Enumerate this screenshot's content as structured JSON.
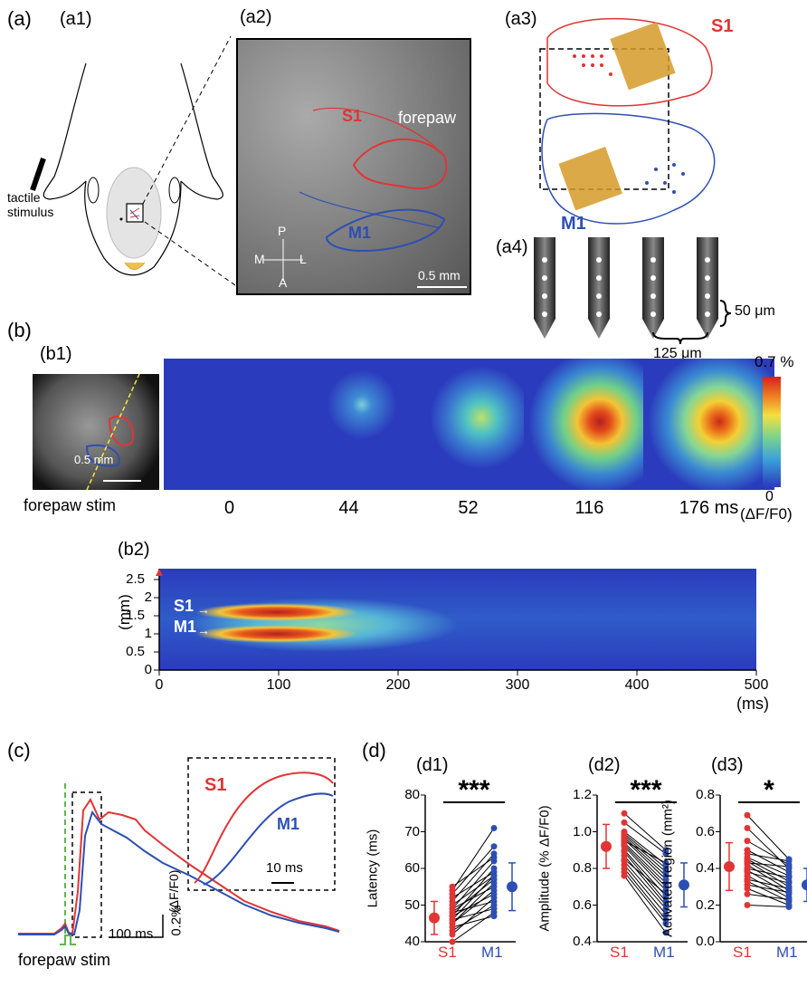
{
  "panels": {
    "a": "(a)",
    "a1": "(a1)",
    "a2": "(a2)",
    "a3": "(a3)",
    "a4": "(a4)",
    "b": "(b)",
    "b1": "(b1)",
    "b2": "(b2)",
    "c": "(c)",
    "d": "(d)",
    "d1": "(d1)",
    "d2": "(d2)",
    "d3": "(d3)"
  },
  "a1": {
    "stimulus_label_1": "tactile",
    "stimulus_label_2": "stimulus"
  },
  "a2": {
    "s1": "S1",
    "m1": "M1",
    "forepaw": "forepaw",
    "compass": {
      "p": "P",
      "a": "A",
      "m": "M",
      "l": "L"
    },
    "scale": "0.5 mm"
  },
  "a3": {
    "s1": "S1",
    "m1": "M1"
  },
  "a4": {
    "vertical_spacing": "50 μm",
    "horizontal_spacing": "125 μm"
  },
  "b1": {
    "scale": "0.5 mm",
    "stim_label": "forepaw stim",
    "times": [
      "0",
      "44",
      "52",
      "116",
      "176 ms"
    ],
    "colorbar_max": "0.7 %",
    "colorbar_min": "0",
    "colorbar_unit": "(ΔF/F0)"
  },
  "b2": {
    "ylabel": "(mm)",
    "xunit": "(ms)",
    "s1": "S1",
    "m1": "M1",
    "yticks": [
      "2.5",
      "2",
      "1.5",
      "1",
      "0.5",
      "0"
    ],
    "xticks": [
      "0",
      "100",
      "200",
      "300",
      "400",
      "500"
    ]
  },
  "c": {
    "inset_s1": "S1",
    "inset_m1": "M1",
    "inset_scale": "10 ms",
    "scale_time": "100 ms",
    "scale_amp": "0.2%",
    "scale_unit": "(ΔF/F0)",
    "stim_label": "forepaw stim"
  },
  "colors": {
    "s1": "#e23434",
    "m1": "#2d4fb3",
    "stim": "#5cb84a"
  },
  "chart_data": [
    {
      "type": "scatter",
      "title": "(d1)",
      "ylabel": "Latency (ms)",
      "categories": [
        "S1",
        "M1"
      ],
      "ylim": [
        40,
        80
      ],
      "yticks": [
        "40",
        "50",
        "60",
        "70",
        "80"
      ],
      "significance": "***",
      "mean": [
        46.5,
        55
      ],
      "sd": [
        4.5,
        6.5
      ],
      "pairs": [
        [
          40,
          48
        ],
        [
          42,
          52
        ],
        [
          43,
          50
        ],
        [
          44,
          47
        ],
        [
          45,
          54
        ],
        [
          45,
          56
        ],
        [
          46,
          49
        ],
        [
          46,
          58
        ],
        [
          47,
          53
        ],
        [
          47,
          60
        ],
        [
          48,
          51
        ],
        [
          48,
          57
        ],
        [
          49,
          55
        ],
        [
          49,
          62
        ],
        [
          50,
          58
        ],
        [
          51,
          64
        ],
        [
          52,
          59
        ],
        [
          53,
          66
        ],
        [
          54,
          71
        ],
        [
          55,
          63
        ]
      ]
    },
    {
      "type": "scatter",
      "title": "(d2)",
      "ylabel": "Amplitude (% ΔF/F0)",
      "categories": [
        "S1",
        "M1"
      ],
      "ylim": [
        0.4,
        1.2
      ],
      "yticks": [
        "0.4",
        "0.6",
        "0.8",
        "1.0",
        "1.2"
      ],
      "significance": "***",
      "mean": [
        0.92,
        0.71
      ],
      "sd": [
        0.12,
        0.12
      ],
      "pairs": [
        [
          1.1,
          0.9
        ],
        [
          1.05,
          0.88
        ],
        [
          1.0,
          0.82
        ],
        [
          0.99,
          0.8
        ],
        [
          0.98,
          0.78
        ],
        [
          0.97,
          0.76
        ],
        [
          0.96,
          0.74
        ],
        [
          0.95,
          0.83
        ],
        [
          0.94,
          0.72
        ],
        [
          0.93,
          0.7
        ],
        [
          0.92,
          0.68
        ],
        [
          0.9,
          0.65
        ],
        [
          0.89,
          0.62
        ],
        [
          0.87,
          0.6
        ],
        [
          0.85,
          0.66
        ],
        [
          0.84,
          0.58
        ],
        [
          0.82,
          0.55
        ],
        [
          0.8,
          0.52
        ],
        [
          0.78,
          0.5
        ],
        [
          0.76,
          0.45
        ]
      ]
    },
    {
      "type": "scatter",
      "title": "(d3)",
      "ylabel": "Activated region (mm²)",
      "categories": [
        "S1",
        "M1"
      ],
      "ylim": [
        0.0,
        0.8
      ],
      "yticks": [
        "0.0",
        "0.2",
        "0.4",
        "0.6",
        "0.8"
      ],
      "significance": "*",
      "mean": [
        0.41,
        0.31
      ],
      "sd": [
        0.13,
        0.09
      ],
      "pairs": [
        [
          0.69,
          0.45
        ],
        [
          0.62,
          0.4
        ],
        [
          0.55,
          0.42
        ],
        [
          0.5,
          0.38
        ],
        [
          0.48,
          0.44
        ],
        [
          0.46,
          0.36
        ],
        [
          0.45,
          0.33
        ],
        [
          0.44,
          0.3
        ],
        [
          0.43,
          0.41
        ],
        [
          0.42,
          0.28
        ],
        [
          0.4,
          0.35
        ],
        [
          0.39,
          0.26
        ],
        [
          0.38,
          0.32
        ],
        [
          0.36,
          0.24
        ],
        [
          0.34,
          0.29
        ],
        [
          0.33,
          0.22
        ],
        [
          0.31,
          0.27
        ],
        [
          0.29,
          0.2
        ],
        [
          0.26,
          0.23
        ],
        [
          0.2,
          0.19
        ]
      ]
    }
  ]
}
